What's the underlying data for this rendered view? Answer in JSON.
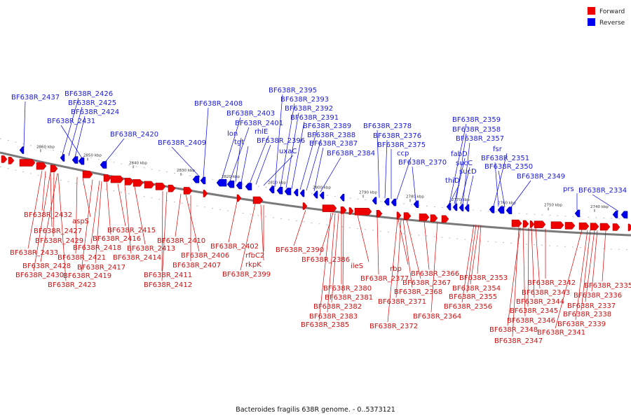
{
  "legend": {
    "forward_label": "Forward",
    "reverse_label": "Reverse",
    "forward_color": "#ee0000",
    "reverse_color": "#0000ee"
  },
  "caption": "Bacteroides fragilis 638R genome. - 0..5373121",
  "ticks": [
    "2860 kbp",
    "2850 kbp",
    "2840 kbp",
    "2830 kbp",
    "2820 kbp",
    "2810 kbp",
    "2800 kbp",
    "2790 kbp",
    "2780 kbp",
    "2770 kbp",
    "2760 kbp",
    "2750 kbp",
    "2740 kbp"
  ],
  "reverse_labels": [
    "BF638R_2437",
    "BF638R_2426",
    "BF638R_2425",
    "BF638R_2424",
    "BF638R_2431",
    "BF638R_2420",
    "BF638R_2409",
    "BF638R_2408",
    "BF638R_2403",
    "BF638R_2401",
    "lon",
    "tgt",
    "rhlE",
    "BF638R_2396",
    "uxaC",
    "BF638R_2395",
    "BF638R_2393",
    "BF638R_2392",
    "BF638R_2391",
    "BF638R_2389",
    "BF638R_2388",
    "BF638R_2387",
    "BF638R_2384",
    "BF638R_2378",
    "BF638R_2376",
    "BF638R_2375",
    "ccp",
    "BF638R_2370",
    "BF638R_2359",
    "BF638R_2358",
    "BF638R_2357",
    "fabD",
    "sucC",
    "sucD",
    "thiD",
    "fsr",
    "BF638R_2351",
    "BF638R_2350",
    "BF638R_2349",
    "prs",
    "BF638R_2334"
  ],
  "forward_labels": [
    "BF638R_2432",
    "aspS",
    "BF638R_2427",
    "BF638R_2429",
    "BF638R_2433",
    "BF638R_2421",
    "BF638R_2428",
    "BF638R_2430",
    "BF638R_2419",
    "BF638R_2423",
    "BF638R_2418",
    "BF638R_2417",
    "BF638R_2416",
    "BF638R_2415",
    "BF638R_2413",
    "BF638R_2414",
    "BF638R_2411",
    "BF638R_2412",
    "BF638R_2410",
    "BF638R_2406",
    "BF638R_2407",
    "BF638R_2402",
    "rfbC2",
    "rkpK",
    "BF638R_2399",
    "BF638R_2390",
    "BF638R_2386",
    "ileS",
    "BF638R_2380",
    "BF638R_2381",
    "BF638R_2382",
    "BF638R_2383",
    "BF638R_2385",
    "BF638R_2377",
    "rbp",
    "BF638R_2367",
    "BF638R_2368",
    "BF638R_2371",
    "BF638R_2372",
    "BF638R_2366",
    "BF638R_2364",
    "BF638R_2353",
    "BF638R_2354",
    "BF638R_2355",
    "BF638R_2356",
    "BF638R_2342",
    "BF638R_2343",
    "BF638R_2344",
    "BF638R_2345",
    "BF638R_2346",
    "BF638R_2348",
    "BF638R_2347",
    "BF638R_2335",
    "BF638R_2336",
    "BF638R_2337",
    "BF638R_2338",
    "BF638R_2339",
    "BF638R_2341"
  ]
}
